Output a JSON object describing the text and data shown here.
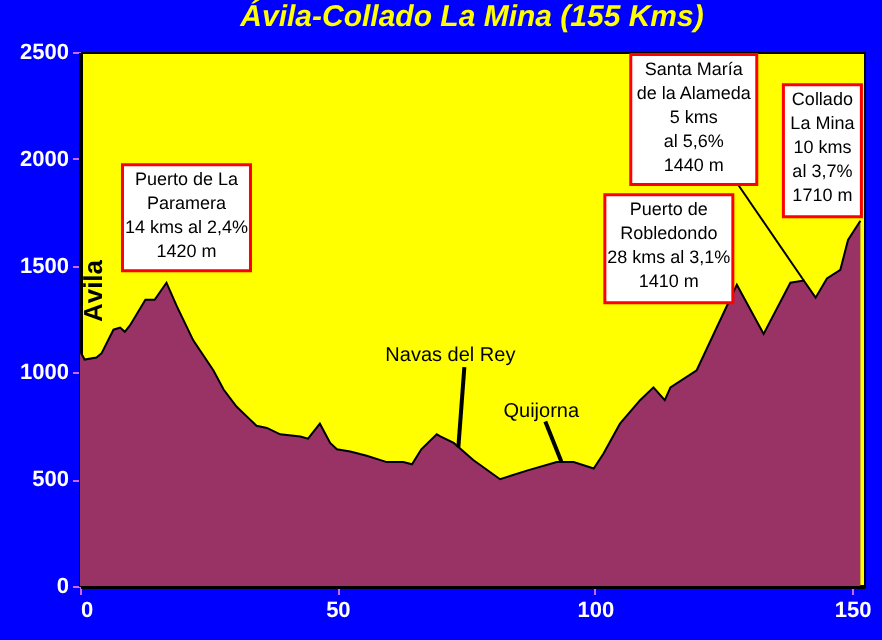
{
  "chart_data": {
    "type": "area",
    "title": "Ávila-Collado La Mina (155 Kms)",
    "x": [
      0,
      0.9,
      3.2,
      4.2,
      6.5,
      7.8,
      8.7,
      9.7,
      12.7,
      14.5,
      16.8,
      18.8,
      22,
      25.9,
      27.9,
      30.4,
      33,
      34.3,
      36.3,
      38.9,
      42.8,
      44.3,
      46.6,
      48.6,
      49.9,
      52.5,
      55.7,
      59.6,
      62.8,
      64.5,
      66.3,
      69.3,
      70,
      72.6,
      76.4,
      81.6,
      86.8,
      92.6,
      95.9,
      99.8,
      101.7,
      104.9,
      108.8,
      111.4,
      113.6,
      114.7,
      119.8,
      123.1,
      127.6,
      132.8,
      138,
      140.6,
      142.9,
      145.1,
      147.7,
      149.2,
      151.6
    ],
    "values": [
      1100,
      1060,
      1070,
      1090,
      1200,
      1210,
      1190,
      1220,
      1340,
      1340,
      1420,
      1310,
      1150,
      1010,
      920,
      840,
      780,
      750,
      740,
      710,
      700,
      690,
      760,
      670,
      640,
      630,
      610,
      580,
      580,
      570,
      640,
      710,
      700,
      670,
      590,
      500,
      540,
      580,
      580,
      550,
      620,
      760,
      870,
      930,
      870,
      930,
      1010,
      1180,
      1410,
      1180,
      1420,
      1430,
      1350,
      1440,
      1480,
      1620,
      1710
    ],
    "color": "#993366",
    "xlim": [
      0,
      152.3
    ],
    "ylim": [
      0,
      2500
    ],
    "xticks": [
      0,
      50,
      100,
      150
    ],
    "yticks": [
      0,
      500,
      {
        "value": 1000,
        "label": "1000"
      },
      {
        "value": 1500,
        "label": "1500"
      },
      {
        "value": 2000,
        "label": "2000"
      },
      {
        "value": 2500,
        "label": "2500"
      }
    ],
    "grid": false,
    "annotations": [
      {
        "text": "Ávila",
        "x": 0,
        "y": 1100
      },
      {
        "text": "Puerto de La\nParamera\n14 kms al 2,4%\n1420 m",
        "x": 16.8,
        "y": 1420
      },
      {
        "text": "Navas del Rey",
        "x": 73.5,
        "y": 650
      },
      {
        "text": "Quijorna",
        "x": 93.5,
        "y": 583
      },
      {
        "text": "Puerto de\nRobledondo\n28 kms al 3,1%\n1410 m",
        "x": 127.6,
        "y": 1410
      },
      {
        "text": "Santa María\nde la Alameda\n5 kms\nal 5,6%\n1440 m",
        "x": 140.6,
        "y": 1430
      },
      {
        "text": "Collado\nLa Mina\n10 kms\nal 3,7%\n1710 m",
        "x": 151.6,
        "y": 1710
      }
    ]
  }
}
